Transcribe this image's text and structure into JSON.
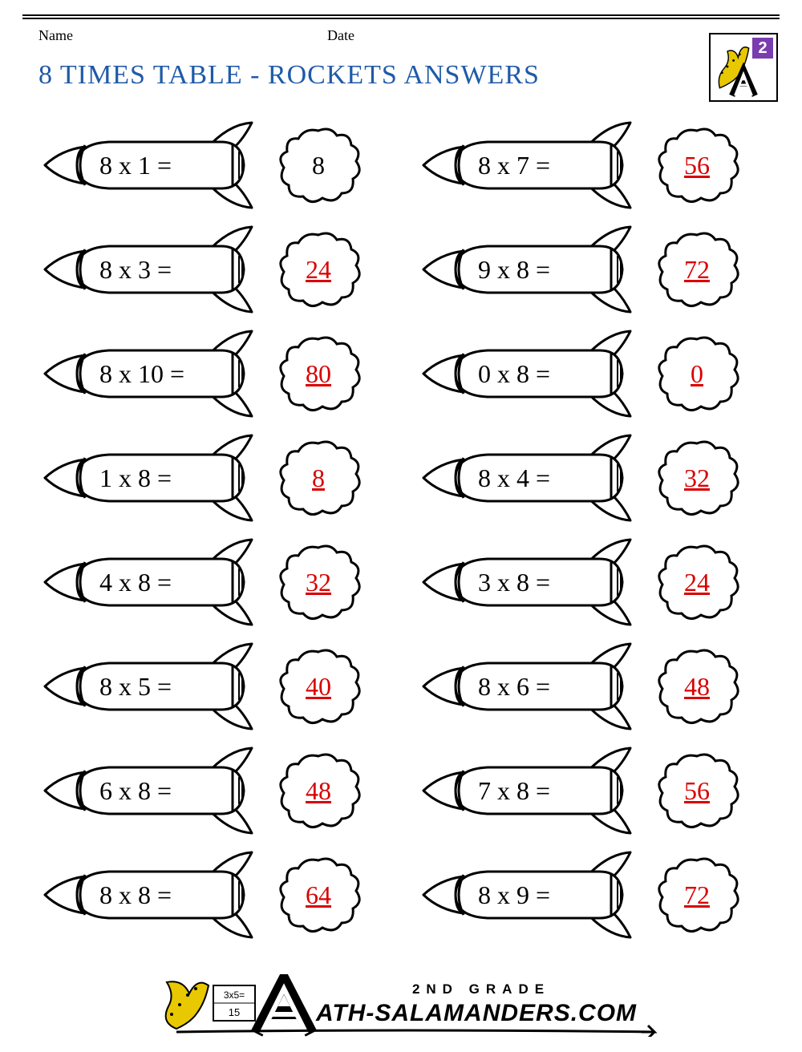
{
  "header": {
    "name_label": "Name",
    "date_label": "Date"
  },
  "title": "8 TIMES TABLE - ROCKETS ANSWERS",
  "logo": {
    "grade_number": "2"
  },
  "colors": {
    "title": "#1f5aa8",
    "answer_red": "#d90000",
    "answer_black": "#000000",
    "stroke": "#000000",
    "badge_corner": "#7a3db0"
  },
  "typography": {
    "title_fontsize": 34,
    "equation_fontsize": 32,
    "answer_fontsize": 32,
    "header_fontsize": 18
  },
  "layout": {
    "columns": 2,
    "rows": 8,
    "item_height": 118,
    "rocket_width": 290,
    "cloud_size": 110
  },
  "problems": [
    {
      "equation": "8 x 1 =",
      "answer": "8",
      "answer_style": "black"
    },
    {
      "equation": "8 x 7 =",
      "answer": "56",
      "answer_style": "red"
    },
    {
      "equation": "8 x 3 =",
      "answer": "24",
      "answer_style": "red"
    },
    {
      "equation": "9 x 8 =",
      "answer": "72",
      "answer_style": "red"
    },
    {
      "equation": "8 x 10 =",
      "answer": "80",
      "answer_style": "red"
    },
    {
      "equation": "0 x 8 =",
      "answer": "0",
      "answer_style": "red"
    },
    {
      "equation": "1 x 8 =",
      "answer": "8",
      "answer_style": "red"
    },
    {
      "equation": "8 x 4 =",
      "answer": "32",
      "answer_style": "red"
    },
    {
      "equation": "4 x 8 =",
      "answer": "32",
      "answer_style": "red"
    },
    {
      "equation": "3 x 8 =",
      "answer": "24",
      "answer_style": "red"
    },
    {
      "equation": "8 x 5 =",
      "answer": "40",
      "answer_style": "red"
    },
    {
      "equation": "8 x 6 =",
      "answer": "48",
      "answer_style": "red"
    },
    {
      "equation": "6 x 8 =",
      "answer": "48",
      "answer_style": "red"
    },
    {
      "equation": "7 x 8 =",
      "answer": "56",
      "answer_style": "red"
    },
    {
      "equation": "8 x 8 =",
      "answer": "64",
      "answer_style": "red"
    },
    {
      "equation": "8 x 9 =",
      "answer": "72",
      "answer_style": "red"
    }
  ],
  "footer": {
    "line1": "2ND GRADE",
    "line2": "ATH-SALAMANDERS.COM"
  }
}
